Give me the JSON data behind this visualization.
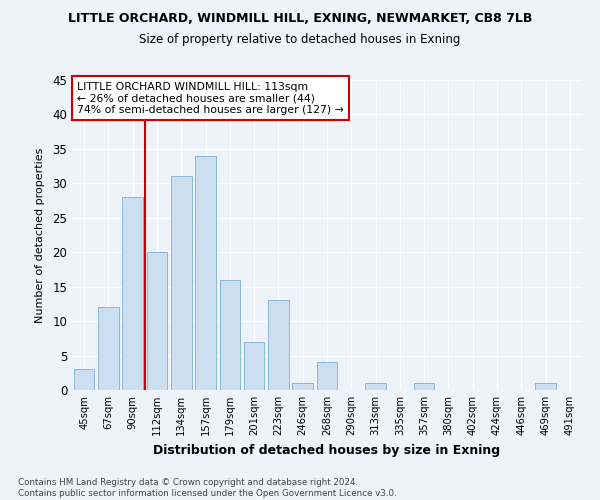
{
  "title": "LITTLE ORCHARD, WINDMILL HILL, EXNING, NEWMARKET, CB8 7LB",
  "subtitle": "Size of property relative to detached houses in Exning",
  "xlabel": "Distribution of detached houses by size in Exning",
  "ylabel": "Number of detached properties",
  "bar_color": "#ccdff0",
  "bar_edge_color": "#7aafd4",
  "categories": [
    "45sqm",
    "67sqm",
    "90sqm",
    "112sqm",
    "134sqm",
    "157sqm",
    "179sqm",
    "201sqm",
    "223sqm",
    "246sqm",
    "268sqm",
    "290sqm",
    "313sqm",
    "335sqm",
    "357sqm",
    "380sqm",
    "402sqm",
    "424sqm",
    "446sqm",
    "469sqm",
    "491sqm"
  ],
  "values": [
    3,
    12,
    28,
    20,
    31,
    34,
    16,
    7,
    13,
    1,
    4,
    0,
    1,
    0,
    1,
    0,
    0,
    0,
    0,
    1,
    0
  ],
  "ylim": [
    0,
    45
  ],
  "yticks": [
    0,
    5,
    10,
    15,
    20,
    25,
    30,
    35,
    40,
    45
  ],
  "annotation_text": "LITTLE ORCHARD WINDMILL HILL: 113sqm\n← 26% of detached houses are smaller (44)\n74% of semi-detached houses are larger (127) →",
  "footnote": "Contains HM Land Registry data © Crown copyright and database right 2024.\nContains public sector information licensed under the Open Government Licence v3.0.",
  "background_color": "#eef2f9",
  "grid_color": "#ffffff",
  "annotation_box_color": "#ffffff",
  "annotation_box_edge": "#cc0000",
  "red_line_color": "#cc0000",
  "red_line_x": 2.5
}
